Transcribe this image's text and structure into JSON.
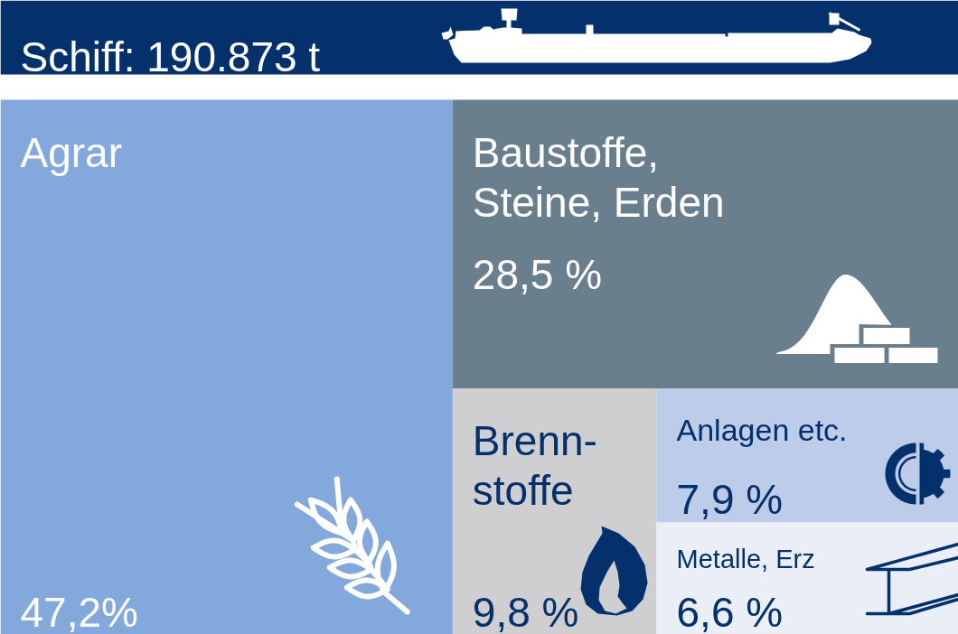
{
  "chart_data": {
    "type": "other",
    "title": "Schiff: 190.873 t",
    "categories": [
      "Agrar",
      "Baustoffe,\nSteine, Erden",
      "Brenn-\nstoffe",
      "Anlagen etc.",
      "Metalle, Erz"
    ],
    "values": [
      47.2,
      28.5,
      9.8,
      7.9,
      6.6
    ],
    "value_labels": [
      "47,2%",
      "28,5 %",
      "9,8 %",
      "7,9 %",
      "6,6 %"
    ],
    "colors": [
      "#82a8dc",
      "#6a7f8e",
      "#cfcfd1",
      "#bdcce8",
      "#eaeef7"
    ]
  }
}
